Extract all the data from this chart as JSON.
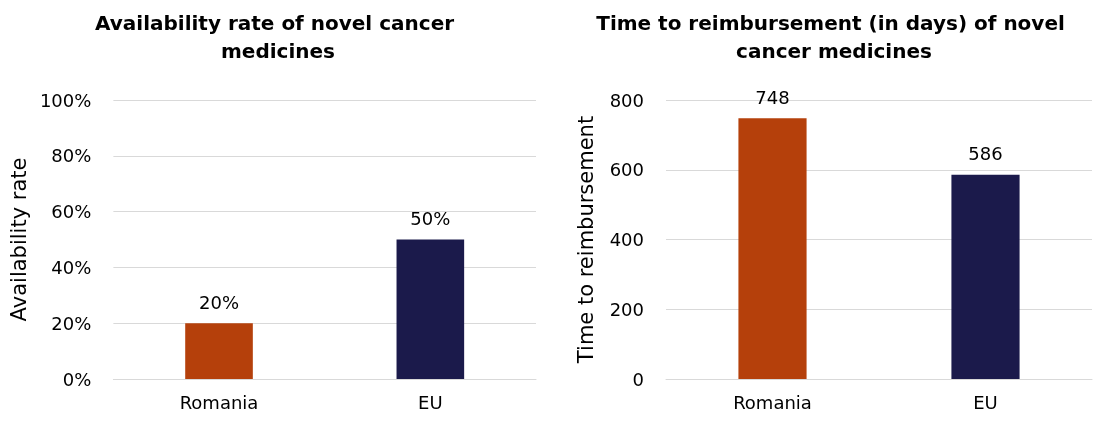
{
  "chart_data": [
    {
      "type": "bar",
      "title": "Availability rate of novel cancer medicines",
      "ylabel": "Availability rate",
      "categories": [
        "Romania",
        "EU"
      ],
      "values": [
        20,
        50
      ],
      "colors": [
        "#b5400b",
        "#1b1a4b"
      ],
      "value_labels": [
        "20%",
        "50%"
      ],
      "ylim": [
        0,
        100
      ],
      "yticks": [
        {
          "value": 0,
          "label": "0%"
        },
        {
          "value": 20,
          "label": "20%"
        },
        {
          "value": 40,
          "label": "40%"
        },
        {
          "value": 60,
          "label": "60%"
        },
        {
          "value": 80,
          "label": "80%"
        },
        {
          "value": 100,
          "label": "100%"
        }
      ],
      "grid": "y"
    },
    {
      "type": "bar",
      "title": "Time to reimbursement (in days) of novel cancer medicines",
      "ylabel": "Time to reimbursement",
      "categories": [
        "Romania",
        "EU"
      ],
      "values": [
        748,
        586
      ],
      "colors": [
        "#b5400b",
        "#1b1a4b"
      ],
      "data_labels": true,
      "ylim": [
        0,
        800
      ],
      "yticks": [
        0,
        200,
        400,
        600,
        800
      ],
      "grid": "y"
    }
  ]
}
